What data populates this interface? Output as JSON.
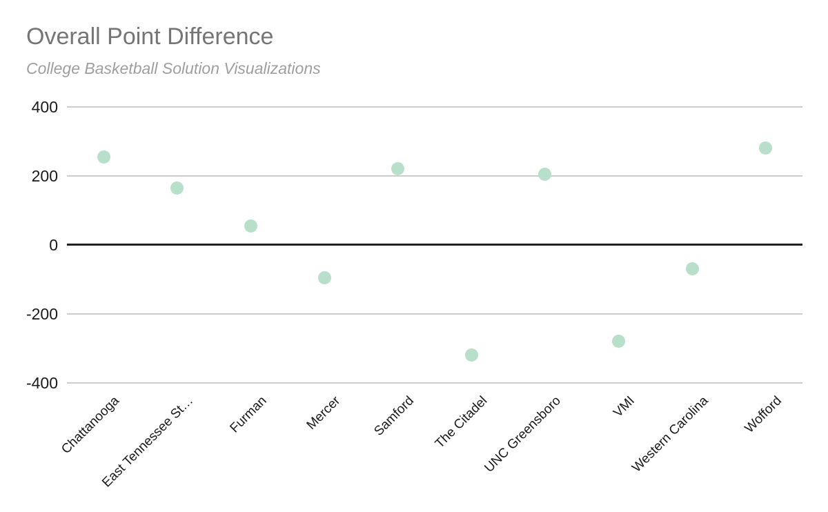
{
  "chart_data": {
    "type": "scatter",
    "title": "Overall Point Difference",
    "subtitle": "College Basketball Solution Visualizations",
    "categories": [
      "Chattanooga",
      "East Tennessee St…",
      "Furman",
      "Mercer",
      "Samford",
      "The Citadel",
      "UNC Greensboro",
      "VMI",
      "Western Carolina",
      "Wofford"
    ],
    "values": [
      255,
      165,
      55,
      -95,
      220,
      -320,
      205,
      -280,
      -70,
      280
    ],
    "xlabel": "",
    "ylabel": "",
    "ylim": [
      -400,
      400
    ],
    "yticks": [
      400,
      200,
      0,
      -200,
      -400
    ],
    "grid": true,
    "legend": false,
    "colors": {
      "point": "#b7dfc9",
      "title": "#757575",
      "subtitle": "#9e9e9e",
      "gridline": "#cccccc",
      "zero_line": "#212121",
      "tick_label": "#1a1a1a"
    }
  }
}
